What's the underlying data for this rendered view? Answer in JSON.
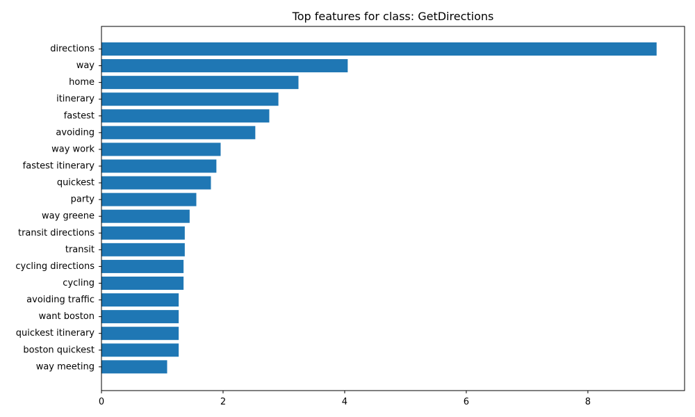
{
  "chart_data": {
    "type": "bar",
    "orientation": "horizontal",
    "title": "Top features for class: GetDirections",
    "xlabel": "",
    "ylabel": "",
    "categories": [
      "directions",
      "way",
      "home",
      "itinerary",
      "fastest",
      "avoiding",
      "way work",
      "fastest itinerary",
      "quickest",
      "party",
      "way greene",
      "transit directions",
      "transit",
      "cycling directions",
      "cycling",
      "avoiding traffic",
      "want boston",
      "quickest itinerary",
      "boston quickest",
      "way meeting"
    ],
    "values": [
      9.13,
      4.05,
      3.24,
      2.91,
      2.76,
      2.53,
      1.96,
      1.89,
      1.8,
      1.56,
      1.45,
      1.37,
      1.37,
      1.35,
      1.35,
      1.27,
      1.27,
      1.27,
      1.27,
      1.08
    ],
    "xlim": [
      0,
      9.59
    ],
    "xticks": [
      0,
      2,
      4,
      6,
      8
    ],
    "xtick_labels": [
      "0",
      "2",
      "4",
      "6",
      "8"
    ],
    "grid": false,
    "legend": "none",
    "bar_color": "#1f77b4"
  }
}
